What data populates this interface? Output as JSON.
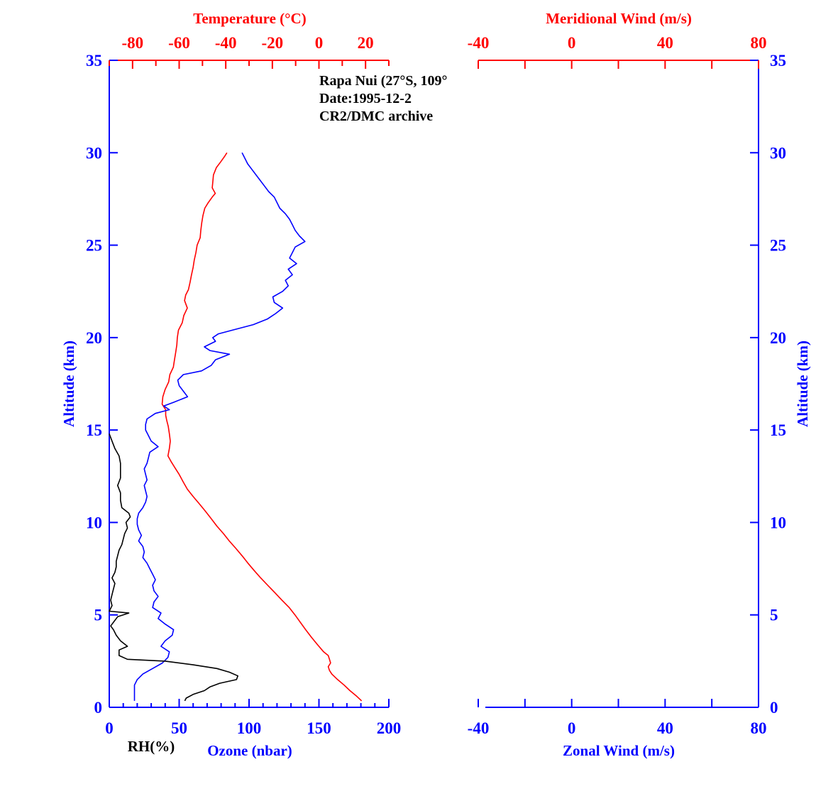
{
  "chart_data": {
    "type": "line",
    "annotations": [
      "Rapa Nui (27°S, 109°",
      "Date:1995-12-2",
      "CR2/DMC archive"
    ],
    "left_panel": {
      "top_axis_label": "Temperature (°C)",
      "top_ticks": [
        "-80",
        "-60",
        "-40",
        "-20",
        "0",
        "20"
      ],
      "top_range": [
        -90,
        30
      ],
      "bottom_axis_label": "Ozone (nbar)",
      "bottom_ticks": [
        "0",
        "50",
        "100",
        "150",
        "200"
      ],
      "bottom_range": [
        0,
        200
      ],
      "rh_label": "RH(%)",
      "rh_range": [
        0,
        200
      ],
      "left_axis_label": "Altitude (km)",
      "altitude_ticks": [
        "0",
        "5",
        "10",
        "15",
        "20",
        "25",
        "30",
        "35"
      ],
      "altitude_range": [
        0,
        35
      ],
      "series": [
        {
          "id": "temperature",
          "axis": "top",
          "color": "#ff0000",
          "points": [
            [
              30.0,
              -39.5
            ],
            [
              29.8,
              -40.5
            ],
            [
              29.5,
              -42.2
            ],
            [
              29.2,
              -44.0
            ],
            [
              28.8,
              -45.3
            ],
            [
              28.5,
              -45.5
            ],
            [
              28.1,
              -45.8
            ],
            [
              27.8,
              -44.5
            ],
            [
              27.6,
              -45.8
            ],
            [
              27.3,
              -47.5
            ],
            [
              27.0,
              -49.0
            ],
            [
              26.6,
              -49.8
            ],
            [
              26.2,
              -50.3
            ],
            [
              25.8,
              -50.7
            ],
            [
              25.4,
              -51.0
            ],
            [
              25.0,
              -52.3
            ],
            [
              24.6,
              -52.8
            ],
            [
              24.2,
              -53.5
            ],
            [
              23.8,
              -54.0
            ],
            [
              23.4,
              -54.7
            ],
            [
              23.0,
              -55.3
            ],
            [
              22.6,
              -56.0
            ],
            [
              22.3,
              -57.2
            ],
            [
              22.0,
              -57.7
            ],
            [
              21.6,
              -56.5
            ],
            [
              21.2,
              -58.0
            ],
            [
              20.8,
              -58.7
            ],
            [
              20.4,
              -60.3
            ],
            [
              20.0,
              -60.8
            ],
            [
              19.6,
              -61.0
            ],
            [
              19.2,
              -61.5
            ],
            [
              18.8,
              -62.0
            ],
            [
              18.4,
              -62.5
            ],
            [
              18.0,
              -64.0
            ],
            [
              17.6,
              -64.5
            ],
            [
              17.2,
              -66.0
            ],
            [
              16.8,
              -67.0
            ],
            [
              16.4,
              -67.3
            ],
            [
              16.1,
              -65.8
            ],
            [
              15.8,
              -65.8
            ],
            [
              15.5,
              -65.3
            ],
            [
              15.2,
              -64.7
            ],
            [
              14.8,
              -64.2
            ],
            [
              14.4,
              -63.8
            ],
            [
              14.0,
              -64.2
            ],
            [
              13.6,
              -64.8
            ],
            [
              13.3,
              -63.5
            ],
            [
              13.0,
              -62.0
            ],
            [
              12.6,
              -60.0
            ],
            [
              12.2,
              -58.3
            ],
            [
              11.8,
              -56.5
            ],
            [
              11.4,
              -54.0
            ],
            [
              11.0,
              -51.3
            ],
            [
              10.6,
              -48.7
            ],
            [
              10.2,
              -46.2
            ],
            [
              9.8,
              -43.8
            ],
            [
              9.4,
              -41.0
            ],
            [
              9.0,
              -38.5
            ],
            [
              8.6,
              -35.7
            ],
            [
              8.2,
              -33.0
            ],
            [
              7.8,
              -30.5
            ],
            [
              7.4,
              -27.8
            ],
            [
              7.0,
              -25.0
            ],
            [
              6.6,
              -22.0
            ],
            [
              6.2,
              -18.9
            ],
            [
              5.8,
              -15.9
            ],
            [
              5.4,
              -12.8
            ],
            [
              5.0,
              -10.3
            ],
            [
              4.6,
              -8.0
            ],
            [
              4.2,
              -5.7
            ],
            [
              3.8,
              -3.3
            ],
            [
              3.4,
              -0.7
            ],
            [
              3.0,
              2.0
            ],
            [
              2.8,
              4.0
            ],
            [
              2.6,
              4.5
            ],
            [
              2.4,
              5.0
            ],
            [
              2.2,
              4.0
            ],
            [
              2.0,
              4.5
            ],
            [
              1.8,
              5.5
            ],
            [
              1.5,
              8.0
            ],
            [
              1.2,
              10.8
            ],
            [
              0.9,
              13.3
            ],
            [
              0.6,
              16.2
            ],
            [
              0.35,
              18.3
            ]
          ]
        },
        {
          "id": "ozone",
          "axis": "bottom",
          "color": "#0000ff",
          "points": [
            [
              30.0,
              95
            ],
            [
              29.7,
              97
            ],
            [
              29.4,
              99
            ],
            [
              29.1,
              102
            ],
            [
              28.8,
              105
            ],
            [
              28.5,
              108
            ],
            [
              28.2,
              111
            ],
            [
              27.9,
              114
            ],
            [
              27.6,
              118
            ],
            [
              27.3,
              120
            ],
            [
              27.0,
              122
            ],
            [
              26.7,
              126
            ],
            [
              26.4,
              129
            ],
            [
              26.1,
              131
            ],
            [
              25.8,
              133
            ],
            [
              25.5,
              136
            ],
            [
              25.2,
              140
            ],
            [
              24.9,
              133
            ],
            [
              24.6,
              131
            ],
            [
              24.3,
              129
            ],
            [
              24.0,
              134
            ],
            [
              23.7,
              128
            ],
            [
              23.4,
              131
            ],
            [
              23.1,
              126
            ],
            [
              22.8,
              128
            ],
            [
              22.5,
              124
            ],
            [
              22.2,
              117
            ],
            [
              21.9,
              118
            ],
            [
              21.6,
              124
            ],
            [
              21.3,
              119
            ],
            [
              21.0,
              113
            ],
            [
              20.7,
              103
            ],
            [
              20.4,
              88
            ],
            [
              20.2,
              78
            ],
            [
              20.0,
              74
            ],
            [
              19.8,
              76
            ],
            [
              19.5,
              68
            ],
            [
              19.3,
              72
            ],
            [
              19.1,
              86
            ],
            [
              18.8,
              76
            ],
            [
              18.5,
              73
            ],
            [
              18.2,
              66
            ],
            [
              18.0,
              53
            ],
            [
              17.7,
              49
            ],
            [
              17.4,
              50
            ],
            [
              17.1,
              53
            ],
            [
              16.8,
              56
            ],
            [
              16.5,
              46
            ],
            [
              16.3,
              39
            ],
            [
              16.1,
              43
            ],
            [
              15.9,
              33
            ],
            [
              15.6,
              27
            ],
            [
              15.3,
              26
            ],
            [
              15.0,
              26
            ],
            [
              14.7,
              28
            ],
            [
              14.4,
              30
            ],
            [
              14.1,
              35
            ],
            [
              13.8,
              29
            ],
            [
              13.5,
              28
            ],
            [
              13.2,
              27
            ],
            [
              12.9,
              25
            ],
            [
              12.6,
              26
            ],
            [
              12.3,
              27
            ],
            [
              12.0,
              25
            ],
            [
              11.7,
              26
            ],
            [
              11.4,
              27
            ],
            [
              11.1,
              26
            ],
            [
              10.8,
              24
            ],
            [
              10.5,
              21
            ],
            [
              10.2,
              20
            ],
            [
              9.9,
              20
            ],
            [
              9.6,
              21
            ],
            [
              9.3,
              23
            ],
            [
              9.0,
              21
            ],
            [
              8.7,
              24
            ],
            [
              8.4,
              25
            ],
            [
              8.1,
              24
            ],
            [
              7.8,
              27
            ],
            [
              7.5,
              29
            ],
            [
              7.2,
              31
            ],
            [
              6.9,
              33
            ],
            [
              6.6,
              31
            ],
            [
              6.3,
              32
            ],
            [
              6.0,
              35
            ],
            [
              5.7,
              32
            ],
            [
              5.4,
              31
            ],
            [
              5.1,
              37
            ],
            [
              4.8,
              35
            ],
            [
              4.5,
              40
            ],
            [
              4.2,
              46
            ],
            [
              3.9,
              45
            ],
            [
              3.6,
              40
            ],
            [
              3.3,
              37
            ],
            [
              3.0,
              43
            ],
            [
              2.7,
              42
            ],
            [
              2.4,
              38
            ],
            [
              2.1,
              31
            ],
            [
              1.8,
              24
            ],
            [
              1.5,
              20
            ],
            [
              1.2,
              18
            ],
            [
              0.9,
              18
            ],
            [
              0.6,
              18
            ],
            [
              0.35,
              18
            ]
          ]
        },
        {
          "id": "relative_humidity",
          "axis": "rh",
          "color": "#000000",
          "points": [
            [
              14.8,
              0
            ],
            [
              14.4,
              2
            ],
            [
              14.0,
              4
            ],
            [
              13.6,
              7
            ],
            [
              13.2,
              8
            ],
            [
              12.8,
              8
            ],
            [
              12.4,
              8
            ],
            [
              12.0,
              6
            ],
            [
              11.6,
              8
            ],
            [
              11.2,
              8
            ],
            [
              10.8,
              9
            ],
            [
              10.5,
              14
            ],
            [
              10.3,
              15
            ],
            [
              10.0,
              12
            ],
            [
              9.7,
              13
            ],
            [
              9.4,
              11
            ],
            [
              9.1,
              10
            ],
            [
              8.8,
              9
            ],
            [
              8.5,
              7
            ],
            [
              8.2,
              6
            ],
            [
              7.9,
              5
            ],
            [
              7.6,
              5
            ],
            [
              7.3,
              4
            ],
            [
              7.0,
              2
            ],
            [
              6.7,
              4
            ],
            [
              6.4,
              3
            ],
            [
              6.1,
              2
            ],
            [
              5.8,
              1
            ],
            [
              5.5,
              2
            ],
            [
              5.2,
              0
            ],
            [
              5.1,
              14
            ],
            [
              4.9,
              6
            ],
            [
              4.6,
              3
            ],
            [
              4.4,
              1
            ],
            [
              4.2,
              3
            ],
            [
              3.9,
              5
            ],
            [
              3.6,
              8
            ],
            [
              3.3,
              13
            ],
            [
              3.1,
              7
            ],
            [
              2.8,
              7
            ],
            [
              2.6,
              13
            ],
            [
              2.5,
              40
            ],
            [
              2.3,
              60
            ],
            [
              2.1,
              77
            ],
            [
              1.9,
              86
            ],
            [
              1.7,
              92
            ],
            [
              1.5,
              91
            ],
            [
              1.3,
              79
            ],
            [
              1.1,
              72
            ],
            [
              0.9,
              68
            ],
            [
              0.7,
              60
            ],
            [
              0.5,
              55
            ],
            [
              0.35,
              54
            ]
          ]
        }
      ]
    },
    "right_panel": {
      "top_axis_label": "Meridional Wind (m/s)",
      "top_ticks": [
        "-40",
        "0",
        "40",
        "80"
      ],
      "bottom_axis_label": "Zonal Wind (m/s)",
      "bottom_ticks": [
        "-40",
        "0",
        "40",
        "80"
      ],
      "wind_range": [
        -40,
        80
      ],
      "right_axis_label": "Altitude (km)",
      "altitude_ticks": [
        "0",
        "5",
        "10",
        "15",
        "20",
        "25",
        "30",
        "35"
      ],
      "altitude_range": [
        0,
        35
      ],
      "series": []
    },
    "colors": {
      "temperature": "#ff0000",
      "ozone": "#0000ff",
      "rh": "#000000",
      "axis_blue": "#0000ff",
      "axis_red": "#ff0000"
    }
  }
}
